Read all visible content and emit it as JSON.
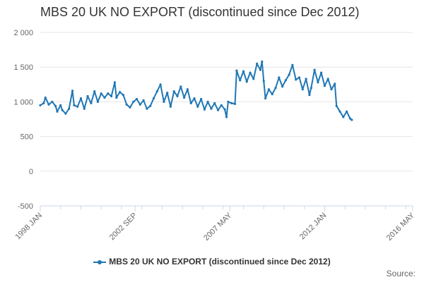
{
  "title": "MBS 20 UK NO EXPORT (discontinued since Dec 2012)",
  "source_label": "Source:",
  "colors": {
    "series": "#1f77b4",
    "grid": "#e6e6e6",
    "axis": "#ccd6eb",
    "text": "#666666"
  },
  "chart_data": {
    "type": "line",
    "title": "MBS 20 UK NO EXPORT (discontinued since Dec 2012)",
    "xlabel": "",
    "ylabel": "",
    "ylim": [
      -500,
      2000
    ],
    "y_ticks": [
      -500,
      0,
      500,
      1000,
      1500,
      2000
    ],
    "y_tick_labels": [
      "-500",
      "0",
      "500",
      "1 000",
      "1 500",
      "2 000"
    ],
    "x_range": [
      "1998 JAN",
      "2016 MAY"
    ],
    "x_ticks": [
      "1998 JAN",
      "2002 SEP",
      "2007 MAY",
      "2012 JAN",
      "2016 MAY"
    ],
    "grid": true,
    "legend": "bottom",
    "series": [
      {
        "name": "MBS 20 UK NO EXPORT (discontinued since Dec 2012)",
        "points": [
          [
            "1998-01",
            950
          ],
          [
            "1998-03",
            980
          ],
          [
            "1998-04",
            1060
          ],
          [
            "1998-06",
            960
          ],
          [
            "1998-08",
            1000
          ],
          [
            "1998-10",
            940
          ],
          [
            "1998-11",
            860
          ],
          [
            "1999-01",
            950
          ],
          [
            "1999-02",
            880
          ],
          [
            "1999-04",
            830
          ],
          [
            "1999-06",
            900
          ],
          [
            "1999-08",
            1160
          ],
          [
            "1999-09",
            950
          ],
          [
            "1999-11",
            930
          ],
          [
            "2000-01",
            1050
          ],
          [
            "2000-03",
            900
          ],
          [
            "2000-05",
            1080
          ],
          [
            "2000-07",
            980
          ],
          [
            "2000-09",
            1150
          ],
          [
            "2000-11",
            1000
          ],
          [
            "2001-01",
            1120
          ],
          [
            "2001-03",
            1060
          ],
          [
            "2001-05",
            1120
          ],
          [
            "2001-07",
            1080
          ],
          [
            "2001-09",
            1280
          ],
          [
            "2001-10",
            1060
          ],
          [
            "2001-12",
            1140
          ],
          [
            "2002-02",
            1100
          ],
          [
            "2002-04",
            960
          ],
          [
            "2002-06",
            920
          ],
          [
            "2002-08",
            1000
          ],
          [
            "2002-10",
            1040
          ],
          [
            "2002-12",
            960
          ],
          [
            "2003-02",
            1020
          ],
          [
            "2003-04",
            900
          ],
          [
            "2003-06",
            940
          ],
          [
            "2003-08",
            1050
          ],
          [
            "2003-10",
            1150
          ],
          [
            "2003-12",
            1250
          ],
          [
            "2004-02",
            1000
          ],
          [
            "2004-04",
            1130
          ],
          [
            "2004-06",
            930
          ],
          [
            "2004-08",
            1150
          ],
          [
            "2004-10",
            1080
          ],
          [
            "2004-12",
            1220
          ],
          [
            "2005-02",
            1060
          ],
          [
            "2005-04",
            1180
          ],
          [
            "2005-06",
            980
          ],
          [
            "2005-08",
            1050
          ],
          [
            "2005-10",
            930
          ],
          [
            "2005-12",
            1040
          ],
          [
            "2006-02",
            890
          ],
          [
            "2006-04",
            1000
          ],
          [
            "2006-06",
            900
          ],
          [
            "2006-08",
            980
          ],
          [
            "2006-10",
            880
          ],
          [
            "2006-12",
            950
          ],
          [
            "2007-02",
            890
          ],
          [
            "2007-03",
            780
          ],
          [
            "2007-04",
            1000
          ],
          [
            "2007-06",
            980
          ],
          [
            "2007-08",
            970
          ],
          [
            "2007-09",
            1450
          ],
          [
            "2007-11",
            1310
          ],
          [
            "2008-01",
            1440
          ],
          [
            "2008-03",
            1290
          ],
          [
            "2008-05",
            1420
          ],
          [
            "2008-07",
            1330
          ],
          [
            "2008-09",
            1550
          ],
          [
            "2008-11",
            1460
          ],
          [
            "2008-12",
            1580
          ],
          [
            "2009-01",
            1300
          ],
          [
            "2009-02",
            1050
          ],
          [
            "2009-04",
            1180
          ],
          [
            "2009-06",
            1110
          ],
          [
            "2009-08",
            1200
          ],
          [
            "2009-10",
            1350
          ],
          [
            "2009-12",
            1220
          ],
          [
            "2010-02",
            1310
          ],
          [
            "2010-04",
            1390
          ],
          [
            "2010-06",
            1530
          ],
          [
            "2010-08",
            1320
          ],
          [
            "2010-10",
            1350
          ],
          [
            "2010-12",
            1180
          ],
          [
            "2011-02",
            1330
          ],
          [
            "2011-04",
            1100
          ],
          [
            "2011-05",
            1200
          ],
          [
            "2011-07",
            1460
          ],
          [
            "2011-09",
            1280
          ],
          [
            "2011-11",
            1420
          ],
          [
            "2012-01",
            1230
          ],
          [
            "2012-03",
            1330
          ],
          [
            "2012-05",
            1180
          ],
          [
            "2012-07",
            1260
          ],
          [
            "2012-08",
            940
          ],
          [
            "2012-10",
            860
          ],
          [
            "2012-12",
            780
          ],
          [
            "2013-02",
            860
          ],
          [
            "2013-04",
            760
          ],
          [
            "2013-05",
            740
          ]
        ]
      }
    ]
  }
}
